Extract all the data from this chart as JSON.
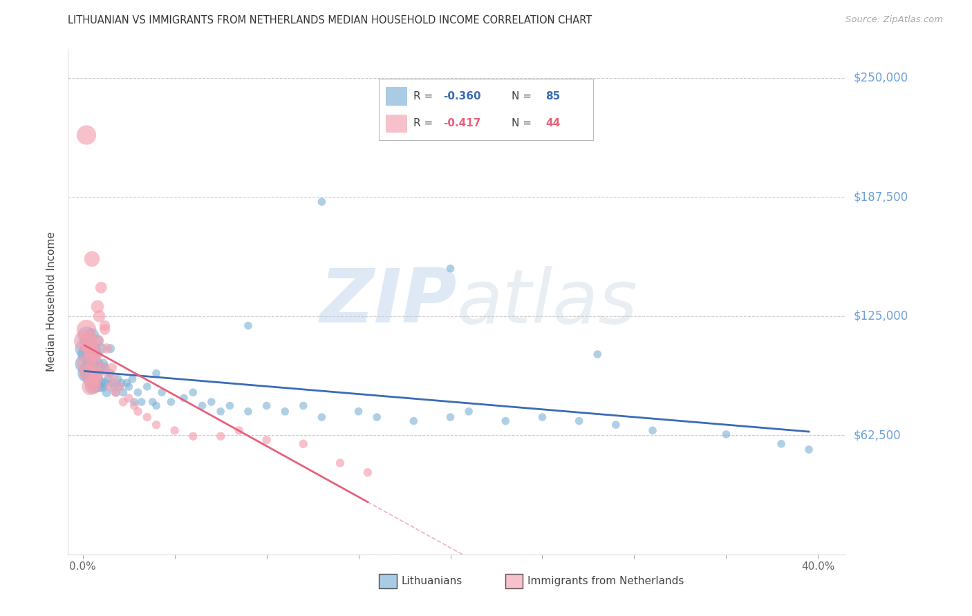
{
  "title": "LITHUANIAN VS IMMIGRANTS FROM NETHERLANDS MEDIAN HOUSEHOLD INCOME CORRELATION CHART",
  "source": "Source: ZipAtlas.com",
  "ylabel": "Median Household Income",
  "x_ticks": [
    0.0,
    0.05,
    0.1,
    0.15,
    0.2,
    0.25,
    0.3,
    0.35,
    0.4
  ],
  "y_ticks": [
    0,
    62500,
    125000,
    187500,
    250000
  ],
  "y_tick_labels": [
    "",
    "$62,500",
    "$125,000",
    "$187,500",
    "$250,000"
  ],
  "xlim": [
    -0.008,
    0.415
  ],
  "ylim": [
    0,
    265000
  ],
  "watermark": "ZIPatlas",
  "blue_color": "#7BAFD4",
  "pink_color": "#F4A0B0",
  "blue_line_color": "#3B6BB5",
  "pink_line_color": "#E8607A",
  "grid_color": "#CCCCCC",
  "right_label_color": "#6CA0DC",
  "blue_scatter_x": [
    0.001,
    0.001,
    0.002,
    0.002,
    0.002,
    0.003,
    0.003,
    0.003,
    0.003,
    0.004,
    0.004,
    0.004,
    0.005,
    0.005,
    0.005,
    0.005,
    0.006,
    0.006,
    0.006,
    0.007,
    0.007,
    0.007,
    0.008,
    0.008,
    0.008,
    0.009,
    0.009,
    0.01,
    0.01,
    0.01,
    0.011,
    0.011,
    0.012,
    0.012,
    0.013,
    0.014,
    0.015,
    0.015,
    0.016,
    0.017,
    0.018,
    0.019,
    0.02,
    0.021,
    0.022,
    0.024,
    0.025,
    0.027,
    0.028,
    0.03,
    0.032,
    0.035,
    0.038,
    0.04,
    0.043,
    0.048,
    0.055,
    0.06,
    0.065,
    0.07,
    0.075,
    0.08,
    0.09,
    0.1,
    0.11,
    0.12,
    0.13,
    0.15,
    0.16,
    0.18,
    0.2,
    0.21,
    0.23,
    0.25,
    0.27,
    0.29,
    0.31,
    0.35,
    0.38,
    0.395,
    0.13,
    0.2,
    0.28,
    0.09,
    0.04
  ],
  "blue_scatter_y": [
    100000,
    108000,
    95000,
    105000,
    115000,
    98000,
    108000,
    95000,
    112000,
    100000,
    92000,
    107000,
    98000,
    88000,
    105000,
    115000,
    90000,
    100000,
    108000,
    95000,
    88000,
    105000,
    92000,
    100000,
    112000,
    88000,
    98000,
    90000,
    98000,
    108000,
    88000,
    100000,
    90000,
    98000,
    85000,
    92000,
    95000,
    108000,
    90000,
    88000,
    85000,
    92000,
    88000,
    90000,
    85000,
    90000,
    88000,
    92000,
    80000,
    85000,
    80000,
    88000,
    80000,
    78000,
    85000,
    80000,
    82000,
    85000,
    78000,
    80000,
    75000,
    78000,
    75000,
    78000,
    75000,
    78000,
    72000,
    75000,
    72000,
    70000,
    72000,
    75000,
    70000,
    72000,
    70000,
    68000,
    65000,
    63000,
    58000,
    55000,
    185000,
    150000,
    105000,
    120000,
    95000
  ],
  "pink_scatter_x": [
    0.001,
    0.002,
    0.002,
    0.003,
    0.003,
    0.004,
    0.004,
    0.005,
    0.005,
    0.006,
    0.006,
    0.007,
    0.007,
    0.008,
    0.008,
    0.009,
    0.01,
    0.011,
    0.012,
    0.013,
    0.014,
    0.015,
    0.016,
    0.017,
    0.018,
    0.02,
    0.022,
    0.025,
    0.028,
    0.03,
    0.035,
    0.04,
    0.05,
    0.06,
    0.075,
    0.085,
    0.1,
    0.12,
    0.14,
    0.155,
    0.002,
    0.005,
    0.008,
    0.012
  ],
  "pink_scatter_y": [
    112000,
    100000,
    118000,
    95000,
    112000,
    88000,
    108000,
    92000,
    105000,
    88000,
    100000,
    92000,
    105000,
    112000,
    95000,
    125000,
    140000,
    98000,
    118000,
    108000,
    95000,
    88000,
    98000,
    92000,
    85000,
    88000,
    80000,
    82000,
    78000,
    75000,
    72000,
    68000,
    65000,
    62000,
    62000,
    65000,
    60000,
    58000,
    48000,
    43000,
    220000,
    155000,
    130000,
    120000
  ],
  "blue_line_x0": 0.001,
  "blue_line_x1": 0.395,
  "pink_line_solid_x0": 0.001,
  "pink_line_solid_x1": 0.155,
  "pink_line_dash_x0": 0.155,
  "pink_line_dash_x1": 0.38
}
